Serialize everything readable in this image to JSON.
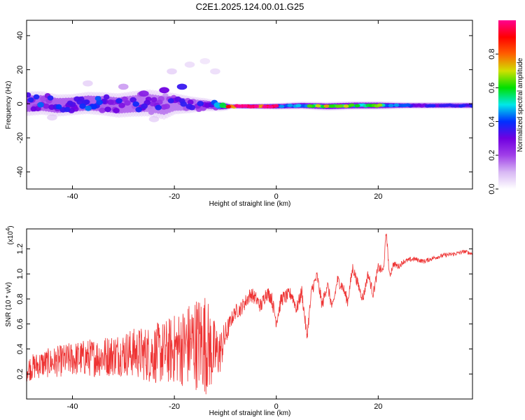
{
  "figure": {
    "title": "C2E1.2025.124.00.01.G25"
  },
  "chart_data": [
    {
      "type": "heatmap",
      "xlabel": "Height of straight line (km)",
      "ylabel": "Frequency (Hz)",
      "xlim": [
        -49,
        38.5
      ],
      "ylim": [
        -50,
        49
      ],
      "x_ticks": [
        -40,
        -20,
        0,
        20
      ],
      "y_ticks": [
        -40,
        -20,
        0,
        20,
        40
      ],
      "colorbar": {
        "label": "Normalized spectral amplitude",
        "range": [
          0,
          1
        ],
        "ticks": [
          0.0,
          0.2,
          0.4,
          0.6,
          0.8
        ],
        "tick_labels": [
          "0.0",
          "0.2",
          "0.4",
          "0.6",
          "0.8"
        ],
        "colors": [
          "#ffffff",
          "#d8b8f4",
          "#a040e8",
          "#7000e0",
          "#0030ff",
          "#00e8e8",
          "#00e000",
          "#d0e000",
          "#ff6000",
          "#ff0000",
          "#ff0090"
        ]
      },
      "spectral_band": {
        "center_hz": [
          [
            -49,
            0.0
          ],
          [
            -46,
            0.5
          ],
          [
            -43,
            -1.0
          ],
          [
            -40,
            -0.5
          ],
          [
            -37,
            0.5
          ],
          [
            -34,
            0.0
          ],
          [
            -31,
            -1.0
          ],
          [
            -28,
            0.0
          ],
          [
            -25,
            0.5
          ],
          [
            -22,
            -1.0
          ],
          [
            -20,
            0.0
          ],
          [
            -17,
            -0.5
          ],
          [
            -14,
            -0.5
          ],
          [
            -11,
            -1.5
          ],
          [
            -9,
            -1.5
          ],
          [
            0,
            -1.5
          ],
          [
            5,
            -1.0
          ],
          [
            10,
            -1.5
          ],
          [
            15,
            -1.0
          ],
          [
            20,
            -1.0
          ],
          [
            25,
            -1.0
          ],
          [
            30,
            -1.0
          ],
          [
            38.5,
            -1.0
          ]
        ],
        "half_width_hz": [
          [
            -49,
            7
          ],
          [
            -40,
            6
          ],
          [
            -30,
            7
          ],
          [
            -22,
            8
          ],
          [
            -20,
            6
          ],
          [
            -15,
            4
          ],
          [
            -10,
            2.5
          ],
          [
            -9,
            1.5
          ],
          [
            0,
            2
          ],
          [
            10,
            2.5
          ],
          [
            20,
            2.5
          ],
          [
            25,
            2
          ],
          [
            38.5,
            2
          ]
        ],
        "peak_amplitude": [
          [
            -49,
            0.35
          ],
          [
            -35,
            0.35
          ],
          [
            -25,
            0.3
          ],
          [
            -20,
            0.3
          ],
          [
            -15,
            0.3
          ],
          [
            -11,
            0.4
          ],
          [
            -9.5,
            0.85
          ],
          [
            -8,
            0.95
          ],
          [
            0,
            0.95
          ],
          [
            0.5,
            0.45
          ],
          [
            5,
            0.5
          ],
          [
            8,
            0.7
          ],
          [
            12,
            0.75
          ],
          [
            16,
            0.55
          ],
          [
            20,
            0.7
          ],
          [
            22,
            0.45
          ],
          [
            28,
            0.35
          ],
          [
            38.5,
            0.35
          ]
        ],
        "outliers": [
          [
            -22,
            8,
            0.3
          ],
          [
            -26,
            6,
            0.25
          ],
          [
            -18.5,
            10,
            0.35
          ],
          [
            -20.5,
            19,
            0.1
          ],
          [
            -17,
            23,
            0.08
          ],
          [
            -14,
            25,
            0.06
          ],
          [
            -30,
            10,
            0.12
          ],
          [
            -37,
            12,
            0.1
          ],
          [
            -12,
            19,
            0.08
          ],
          [
            -44,
            -8,
            0.1
          ],
          [
            -24,
            -9,
            0.1
          ]
        ]
      }
    },
    {
      "type": "line",
      "xlabel": "Height of straight line (km)",
      "ylabel": "SNR (10 * v/v)",
      "y_multiplier": "(x10",
      "y_multiplier_exponent": "4",
      "y_multiplier_close": ")",
      "xlim": [
        -49,
        38.5
      ],
      "ylim": [
        0,
        1.36
      ],
      "x_ticks": [
        -40,
        -20,
        0,
        20
      ],
      "y_ticks": [
        0.2,
        0.4,
        0.6,
        0.8,
        1.0,
        1.2
      ],
      "y_tick_labels": [
        "0.2",
        "0.4",
        "0.6",
        "0.8",
        "1.0",
        "1.2"
      ],
      "series": [
        {
          "color": "#ee3333",
          "points": [
            [
              -49,
              0.24
            ],
            [
              -46,
              0.28
            ],
            [
              -43,
              0.3
            ],
            [
              -40,
              0.32
            ],
            [
              -37,
              0.33
            ],
            [
              -34,
              0.34
            ],
            [
              -31,
              0.36
            ],
            [
              -28,
              0.37
            ],
            [
              -25,
              0.36
            ],
            [
              -22,
              0.37
            ],
            [
              -20,
              0.4
            ],
            [
              -18,
              0.42
            ],
            [
              -16,
              0.45
            ],
            [
              -14,
              0.45
            ],
            [
              -13,
              0.4
            ],
            [
              -12,
              0.36
            ],
            [
              -11,
              0.38
            ],
            [
              -10,
              0.5
            ],
            [
              -9,
              0.62
            ],
            [
              -8,
              0.7
            ],
            [
              -7,
              0.72
            ],
            [
              -6,
              0.78
            ],
            [
              -5,
              0.84
            ],
            [
              -4,
              0.8
            ],
            [
              -3,
              0.74
            ],
            [
              -2,
              0.85
            ],
            [
              -1,
              0.82
            ],
            [
              0,
              0.62
            ],
            [
              1,
              0.8
            ],
            [
              2,
              0.82
            ],
            [
              3,
              0.84
            ],
            [
              4,
              0.72
            ],
            [
              5,
              0.86
            ],
            [
              6,
              0.5
            ],
            [
              7,
              0.88
            ],
            [
              8,
              0.98
            ],
            [
              9,
              0.75
            ],
            [
              10,
              0.92
            ],
            [
              11,
              0.72
            ],
            [
              12,
              0.95
            ],
            [
              13,
              0.9
            ],
            [
              14,
              0.78
            ],
            [
              15,
              1.05
            ],
            [
              16,
              0.92
            ],
            [
              17,
              0.8
            ],
            [
              18,
              1.0
            ],
            [
              19,
              0.84
            ],
            [
              20,
              1.05
            ],
            [
              21,
              1.02
            ],
            [
              21.6,
              1.34
            ],
            [
              22.2,
              0.98
            ],
            [
              23,
              1.08
            ],
            [
              24,
              1.06
            ],
            [
              25,
              1.1
            ],
            [
              27,
              1.12
            ],
            [
              29,
              1.1
            ],
            [
              31,
              1.13
            ],
            [
              33,
              1.15
            ],
            [
              35,
              1.16
            ],
            [
              37,
              1.18
            ],
            [
              38.5,
              1.16
            ]
          ],
          "noise_amplitude": [
            [
              -49,
              0.1
            ],
            [
              -30,
              0.18
            ],
            [
              -20,
              0.28
            ],
            [
              -14,
              0.42
            ],
            [
              -11,
              0.18
            ],
            [
              -9,
              0.06
            ],
            [
              0,
              0.06
            ],
            [
              10,
              0.05
            ],
            [
              20,
              0.04
            ],
            [
              25,
              0.02
            ],
            [
              38.5,
              0.015
            ]
          ]
        }
      ]
    }
  ]
}
